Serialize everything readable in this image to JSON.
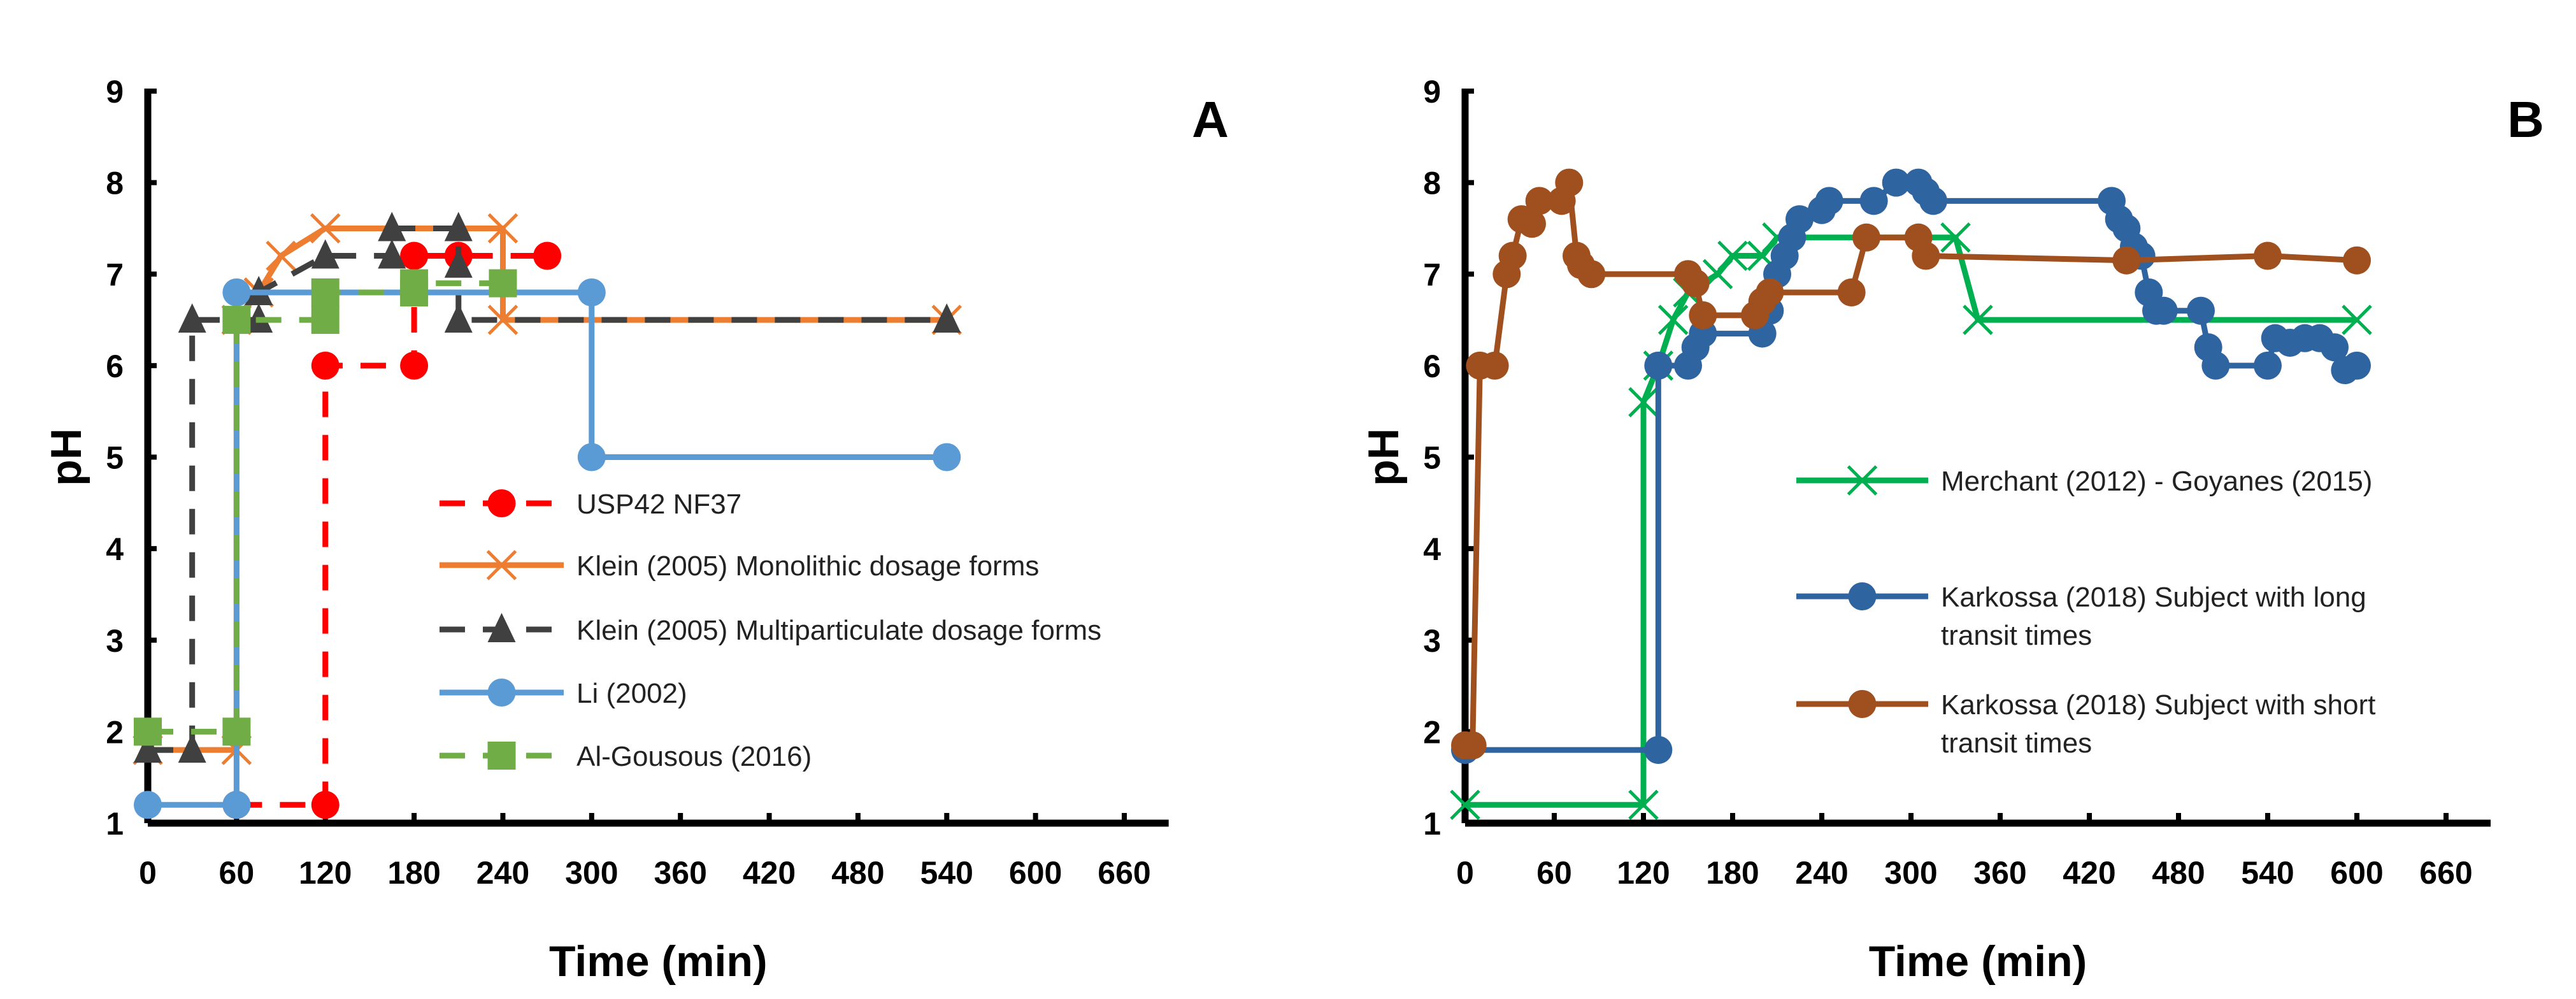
{
  "chart_data": [
    {
      "type": "line",
      "panel_label": "A",
      "xlabel": "Time (min)",
      "ylabel": "pH",
      "xlim": [
        0,
        690
      ],
      "ylim": [
        1,
        9
      ],
      "xticks": [
        0,
        60,
        120,
        180,
        240,
        300,
        360,
        420,
        480,
        540,
        600,
        660
      ],
      "yticks": [
        1,
        2,
        3,
        4,
        5,
        6,
        7,
        8,
        9
      ],
      "grid": false,
      "legend_position": "center-right",
      "series": [
        {
          "name": "USP42 NF37",
          "color": "#ff0000",
          "dash": true,
          "marker": "circle",
          "points": [
            [
              60,
              1.2
            ],
            [
              120,
              1.2
            ],
            [
              120,
              6
            ],
            [
              180,
              6
            ],
            [
              180,
              7.2
            ],
            [
              210,
              7.2
            ],
            [
              270,
              7.2
            ]
          ]
        },
        {
          "name": "Klein (2005) Monolithic dosage forms",
          "color": "#ed7d31",
          "dash": false,
          "marker": "x",
          "points": [
            [
              0,
              1.8
            ],
            [
              60,
              1.8
            ],
            [
              60,
              6.5
            ],
            [
              75,
              6.8
            ],
            [
              90,
              7.2
            ],
            [
              120,
              7.5
            ],
            [
              240,
              7.5
            ],
            [
              240,
              6.5
            ],
            [
              540,
              6.5
            ]
          ]
        },
        {
          "name": "Klein (2005) Multiparticulate dosage forms",
          "color": "#404040",
          "dash": true,
          "marker": "triangle",
          "points": [
            [
              0,
              1.8
            ],
            [
              30,
              1.8
            ],
            [
              30,
              6.5
            ],
            [
              75,
              6.5
            ],
            [
              75,
              6.8
            ],
            [
              120,
              7.2
            ],
            [
              165,
              7.2
            ],
            [
              165,
              7.5
            ],
            [
              210,
              7.5
            ],
            [
              210,
              7.1
            ],
            [
              210,
              6.5
            ],
            [
              540,
              6.5
            ]
          ]
        },
        {
          "name": "Li (2002)",
          "color": "#5b9bd5",
          "dash": false,
          "marker": "circle",
          "points": [
            [
              0,
              1.2
            ],
            [
              60,
              1.2
            ],
            [
              60,
              6.8
            ],
            [
              300,
              6.8
            ],
            [
              300,
              5
            ],
            [
              540,
              5
            ]
          ]
        },
        {
          "name": "Al-Gousous (2016)",
          "color": "#70ad47",
          "dash": true,
          "marker": "square",
          "points": [
            [
              0,
              2
            ],
            [
              60,
              2
            ],
            [
              60,
              6.5
            ],
            [
              120,
              6.5
            ],
            [
              120,
              6.8
            ],
            [
              180,
              6.8
            ],
            [
              180,
              6.9
            ],
            [
              240,
              6.9
            ]
          ]
        }
      ]
    },
    {
      "type": "line",
      "panel_label": "B",
      "xlabel": "Time (min)",
      "ylabel": "pH",
      "xlim": [
        0,
        690
      ],
      "ylim": [
        1,
        9
      ],
      "xticks": [
        0,
        60,
        120,
        180,
        240,
        300,
        360,
        420,
        480,
        540,
        600,
        660
      ],
      "yticks": [
        1,
        2,
        3,
        4,
        5,
        6,
        7,
        8,
        9
      ],
      "grid": false,
      "legend_position": "center-right",
      "series": [
        {
          "name": "Merchant (2012) - Goyanes (2015)",
          "color": "#00b050",
          "dash": false,
          "marker": "x",
          "points": [
            [
              0,
              1.2
            ],
            [
              120,
              1.2
            ],
            [
              120,
              5.6
            ],
            [
              130,
              6
            ],
            [
              140,
              6.5
            ],
            [
              150,
              6.8
            ],
            [
              170,
              7
            ],
            [
              180,
              7.2
            ],
            [
              200,
              7.2
            ],
            [
              210,
              7.4
            ],
            [
              330,
              7.4
            ],
            [
              345,
              6.5
            ],
            [
              600,
              6.5
            ]
          ]
        },
        {
          "name": "Karkossa (2018) Subject with long transit times",
          "legend_lines": [
            "Karkossa (2018) Subject with long",
            "transit times"
          ],
          "color": "#2e64a0",
          "dash": false,
          "marker": "circle",
          "points": [
            [
              0,
              1.8
            ],
            [
              130,
              1.8
            ],
            [
              130,
              6
            ],
            [
              150,
              6
            ],
            [
              155,
              6.2
            ],
            [
              160,
              6.35
            ],
            [
              200,
              6.35
            ],
            [
              205,
              6.6
            ],
            [
              210,
              7
            ],
            [
              215,
              7.2
            ],
            [
              220,
              7.4
            ],
            [
              225,
              7.6
            ],
            [
              240,
              7.7
            ],
            [
              245,
              7.8
            ],
            [
              275,
              7.8
            ],
            [
              290,
              8
            ],
            [
              305,
              8
            ],
            [
              310,
              7.9
            ],
            [
              315,
              7.8
            ],
            [
              435,
              7.8
            ],
            [
              440,
              7.6
            ],
            [
              445,
              7.5
            ],
            [
              450,
              7.3
            ],
            [
              455,
              7.2
            ],
            [
              460,
              6.8
            ],
            [
              465,
              6.6
            ],
            [
              470,
              6.6
            ],
            [
              495,
              6.6
            ],
            [
              500,
              6.2
            ],
            [
              505,
              6
            ],
            [
              540,
              6
            ],
            [
              545,
              6.3
            ],
            [
              555,
              6.25
            ],
            [
              565,
              6.3
            ],
            [
              575,
              6.3
            ],
            [
              585,
              6.2
            ],
            [
              592,
              5.95
            ],
            [
              600,
              6
            ]
          ]
        },
        {
          "name": "Karkossa (2018) Subject with short transit times",
          "legend_lines": [
            "Karkossa (2018) Subject with short",
            "transit times"
          ],
          "color": "#a0501e",
          "dash": false,
          "marker": "circle",
          "points": [
            [
              0,
              1.85
            ],
            [
              5,
              1.85
            ],
            [
              10,
              6
            ],
            [
              20,
              6
            ],
            [
              28,
              7
            ],
            [
              32,
              7.2
            ],
            [
              38,
              7.6
            ],
            [
              45,
              7.55
            ],
            [
              50,
              7.8
            ],
            [
              65,
              7.8
            ],
            [
              70,
              8
            ],
            [
              75,
              7.2
            ],
            [
              78,
              7.1
            ],
            [
              85,
              7
            ],
            [
              150,
              7
            ],
            [
              155,
              6.9
            ],
            [
              160,
              6.55
            ],
            [
              195,
              6.55
            ],
            [
              200,
              6.7
            ],
            [
              205,
              6.8
            ],
            [
              260,
              6.8
            ],
            [
              270,
              7.4
            ],
            [
              305,
              7.4
            ],
            [
              310,
              7.2
            ],
            [
              445,
              7.15
            ],
            [
              540,
              7.2
            ],
            [
              600,
              7.15
            ]
          ]
        }
      ]
    }
  ]
}
